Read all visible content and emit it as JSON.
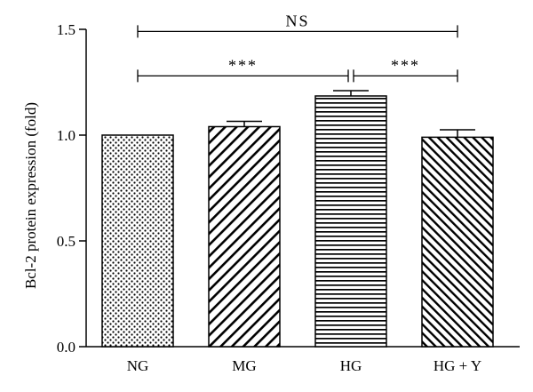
{
  "chart_data": {
    "type": "bar",
    "categories": [
      "NG",
      "MG",
      "HG",
      "HG + Y"
    ],
    "values": [
      1.0,
      1.04,
      1.185,
      0.99
    ],
    "errors": [
      0.0,
      0.025,
      0.025,
      0.035
    ],
    "patterns": [
      "dots",
      "diagonal-right",
      "horizontal",
      "diagonal-left"
    ],
    "xlabel": "",
    "ylabel": "Bcl-2 protein expression (fold)",
    "ylim": [
      0.0,
      1.5
    ],
    "yticks": [
      "0.0",
      "0.5",
      "1.0",
      "1.5"
    ],
    "grid": false,
    "annotations": [
      {
        "from": "NG",
        "to": "HG + Y",
        "label": "NS",
        "level": 1.49
      },
      {
        "from": "NG",
        "to": "HG",
        "label": "***",
        "level": 1.28
      },
      {
        "from": "HG",
        "to": "HG + Y",
        "label": "***",
        "level": 1.28
      }
    ]
  },
  "colors": {
    "axis": "#000000",
    "bar_fill": "#ffffff",
    "bar_stroke": "#000000"
  }
}
